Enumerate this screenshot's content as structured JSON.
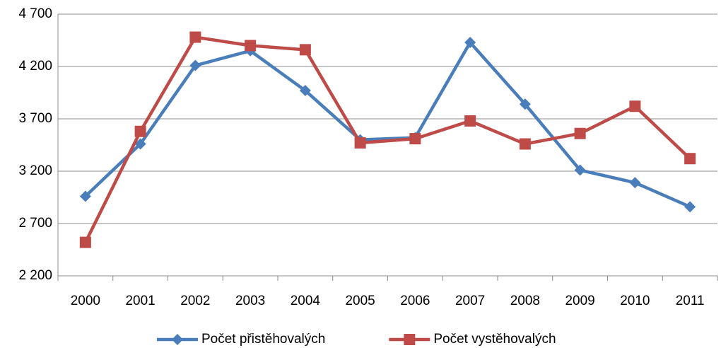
{
  "chart_data": {
    "type": "line",
    "categories": [
      "2000",
      "2001",
      "2002",
      "2003",
      "2004",
      "2005",
      "2006",
      "2007",
      "2008",
      "2009",
      "2010",
      "2011"
    ],
    "series": [
      {
        "name": "Počet přistěhovalých",
        "color": "#4a7ebb",
        "marker": "diamond",
        "values": [
          2960,
          3460,
          4210,
          4350,
          3970,
          3500,
          3520,
          4430,
          3840,
          3210,
          3090,
          2860
        ]
      },
      {
        "name": "Počet vystěhovalých",
        "color": "#be4b48",
        "marker": "square",
        "values": [
          2520,
          3580,
          4480,
          4400,
          4360,
          3470,
          3510,
          3680,
          3460,
          3560,
          3820,
          3320
        ]
      }
    ],
    "ylim": [
      2200,
      4700
    ],
    "yticks": [
      {
        "value": 2200,
        "label": "2 200"
      },
      {
        "value": 2700,
        "label": "2 700"
      },
      {
        "value": 3200,
        "label": "3 200"
      },
      {
        "value": 3700,
        "label": "3 700"
      },
      {
        "value": 4200,
        "label": "4 200"
      },
      {
        "value": 4700,
        "label": "4 700"
      }
    ],
    "grid": true,
    "legend": "bottom"
  }
}
